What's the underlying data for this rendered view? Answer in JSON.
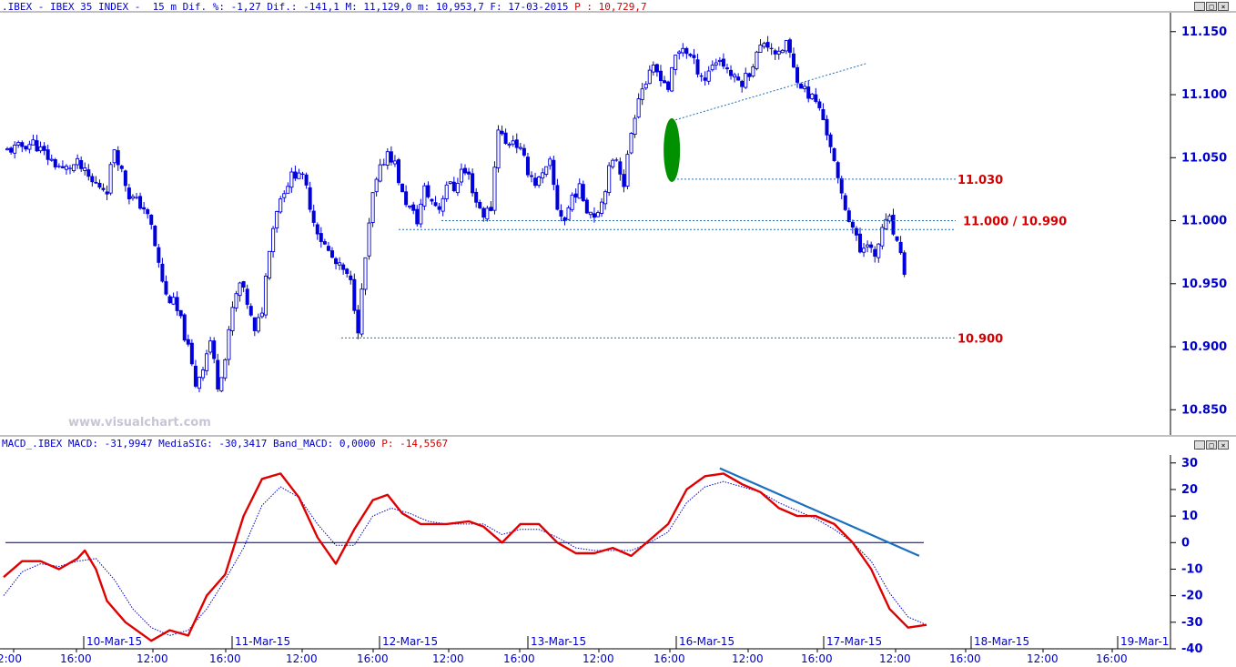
{
  "header": {
    "main_text": ".IBEX - IBEX 35 INDEX -  15 m Dif. %: -1,27 Dif.: -141,1 M: 11,129,0 m: 10,953,7 F: 17-03-2015",
    "main_price_label": "P : 10,729,7",
    "macd_text": "MACD_.IBEX MACD: -31,9947 MediaSIG: -30,3417 Band_MACD: 0,0000",
    "macd_price_label": "P: -14,5567"
  },
  "window_buttons": [
    "_",
    "□",
    "×"
  ],
  "watermark": "www.visualchart.com",
  "colors": {
    "candle": "#0000dd",
    "axis": "#0000cc",
    "level_label": "#d40000",
    "macd": "#e00000",
    "signal": "#0000cc",
    "trendline": "#1a6fc0",
    "highlight": "#009000"
  },
  "chart_data": [
    {
      "type": "candlestick",
      "title": "IBEX 35 INDEX 15 m",
      "y_ticks": [
        "11.150",
        "11.100",
        "11.050",
        "11.000",
        "10.950",
        "10.900",
        "10.850"
      ],
      "ylim": [
        10830,
        11165
      ],
      "x_date_labels": [
        "10-Mar-15",
        "11-Mar-15",
        "12-Mar-15",
        "13-Mar-15",
        "16-Mar-15",
        "17-Mar-15",
        "18-Mar-15",
        "19-Mar-1"
      ],
      "x_time_labels": [
        "2:00",
        "16:00",
        "12:00",
        "16:00",
        "12:00",
        "16:00",
        "12:00",
        "16:00",
        "12:00",
        "16:00",
        "12:00",
        "16:00",
        "12:00",
        "16:00",
        "12:00",
        "16:00"
      ],
      "close_path": [
        [
          0,
          11055
        ],
        [
          4,
          11058
        ],
        [
          8,
          11062
        ],
        [
          12,
          11050
        ],
        [
          16,
          11040
        ],
        [
          20,
          11045
        ],
        [
          24,
          11030
        ],
        [
          28,
          11025
        ],
        [
          30,
          11058
        ],
        [
          34,
          11020
        ],
        [
          38,
          11010
        ],
        [
          40,
          10995
        ],
        [
          42,
          10965
        ],
        [
          44,
          10940
        ],
        [
          46,
          10935
        ],
        [
          48,
          10920
        ],
        [
          50,
          10898
        ],
        [
          52,
          10870
        ],
        [
          54,
          10885
        ],
        [
          56,
          10905
        ],
        [
          58,
          10870
        ],
        [
          60,
          10890
        ],
        [
          62,
          10930
        ],
        [
          64,
          10950
        ],
        [
          66,
          10935
        ],
        [
          68,
          10910
        ],
        [
          70,
          10930
        ],
        [
          72,
          10980
        ],
        [
          74,
          11010
        ],
        [
          76,
          11025
        ],
        [
          78,
          11035
        ],
        [
          80,
          11040
        ],
        [
          82,
          11025
        ],
        [
          84,
          11000
        ],
        [
          86,
          10985
        ],
        [
          88,
          10975
        ],
        [
          90,
          10965
        ],
        [
          92,
          10960
        ],
        [
          94,
          10950
        ],
        [
          96,
          10915
        ],
        [
          98,
          10970
        ],
        [
          100,
          11020
        ],
        [
          102,
          11040
        ],
        [
          104,
          11055
        ],
        [
          106,
          11045
        ],
        [
          108,
          11020
        ],
        [
          110,
          11010
        ],
        [
          112,
          11000
        ],
        [
          114,
          11025
        ],
        [
          116,
          11015
        ],
        [
          118,
          11010
        ],
        [
          120,
          11030
        ],
        [
          122,
          11025
        ],
        [
          124,
          11040
        ],
        [
          126,
          11035
        ],
        [
          128,
          11015
        ],
        [
          130,
          11005
        ],
        [
          132,
          11010
        ],
        [
          134,
          11075
        ],
        [
          136,
          11060
        ],
        [
          138,
          11065
        ],
        [
          140,
          11055
        ],
        [
          142,
          11040
        ],
        [
          144,
          11030
        ],
        [
          146,
          11035
        ],
        [
          148,
          11045
        ],
        [
          150,
          11010
        ],
        [
          152,
          11000
        ],
        [
          154,
          11020
        ],
        [
          156,
          11025
        ],
        [
          158,
          11010
        ],
        [
          160,
          11005
        ],
        [
          162,
          11015
        ],
        [
          164,
          11040
        ],
        [
          166,
          11050
        ],
        [
          168,
          11030
        ],
        [
          170,
          11070
        ],
        [
          172,
          11100
        ],
        [
          174,
          11110
        ],
        [
          176,
          11120
        ],
        [
          178,
          11115
        ],
        [
          180,
          11105
        ],
        [
          182,
          11130
        ],
        [
          184,
          11138
        ],
        [
          186,
          11130
        ],
        [
          188,
          11120
        ],
        [
          190,
          11112
        ],
        [
          192,
          11125
        ],
        [
          194,
          11128
        ],
        [
          196,
          11120
        ],
        [
          198,
          11112
        ],
        [
          200,
          11110
        ],
        [
          202,
          11118
        ],
        [
          204,
          11132
        ],
        [
          206,
          11142
        ],
        [
          208,
          11138
        ],
        [
          210,
          11130
        ],
        [
          212,
          11142
        ],
        [
          214,
          11120
        ],
        [
          216,
          11108
        ],
        [
          218,
          11100
        ],
        [
          220,
          11095
        ],
        [
          222,
          11080
        ],
        [
          224,
          11060
        ],
        [
          226,
          11030
        ],
        [
          228,
          11010
        ],
        [
          230,
          10995
        ],
        [
          232,
          10975
        ],
        [
          234,
          10985
        ],
        [
          236,
          10968
        ],
        [
          238,
          10995
        ],
        [
          240,
          11000
        ],
        [
          242,
          10980
        ],
        [
          244,
          10960
        ]
      ],
      "levels": [
        {
          "label": "11.030",
          "value": 11033
        },
        {
          "label": "11.000 / 10.990",
          "value": 11000
        },
        {
          "label": "",
          "value": 10993
        },
        {
          "label": "10.900",
          "value": 10907
        }
      ]
    },
    {
      "type": "line",
      "title": "MACD",
      "y_ticks": [
        "30",
        "20",
        "10",
        "0",
        "-10",
        "-20",
        "-30",
        "-40"
      ],
      "ylim": [
        -40,
        33
      ],
      "series": [
        {
          "name": "MACD",
          "values": [
            [
              0,
              -13
            ],
            [
              5,
              -7
            ],
            [
              10,
              -7
            ],
            [
              15,
              -10
            ],
            [
              20,
              -6
            ],
            [
              22,
              -3
            ],
            [
              25,
              -10
            ],
            [
              28,
              -22
            ],
            [
              33,
              -30
            ],
            [
              40,
              -37
            ],
            [
              45,
              -33
            ],
            [
              50,
              -35
            ],
            [
              55,
              -20
            ],
            [
              60,
              -12
            ],
            [
              65,
              10
            ],
            [
              70,
              24
            ],
            [
              75,
              26
            ],
            [
              80,
              17
            ],
            [
              85,
              2
            ],
            [
              90,
              -8
            ],
            [
              95,
              5
            ],
            [
              100,
              16
            ],
            [
              104,
              18
            ],
            [
              108,
              11
            ],
            [
              113,
              7
            ],
            [
              120,
              7
            ],
            [
              126,
              8
            ],
            [
              130,
              6
            ],
            [
              135,
              0
            ],
            [
              140,
              7
            ],
            [
              145,
              7
            ],
            [
              150,
              0
            ],
            [
              155,
              -4
            ],
            [
              160,
              -4
            ],
            [
              165,
              -2
            ],
            [
              170,
              -5
            ],
            [
              175,
              1
            ],
            [
              180,
              7
            ],
            [
              185,
              20
            ],
            [
              190,
              25
            ],
            [
              195,
              26
            ],
            [
              200,
              22
            ],
            [
              205,
              19
            ],
            [
              210,
              13
            ],
            [
              215,
              10
            ],
            [
              220,
              10
            ],
            [
              225,
              7
            ],
            [
              230,
              0
            ],
            [
              235,
              -10
            ],
            [
              240,
              -25
            ],
            [
              245,
              -32
            ],
            [
              250,
              -31
            ]
          ]
        },
        {
          "name": "MediaSIG",
          "values": [
            [
              0,
              -20
            ],
            [
              5,
              -11
            ],
            [
              10,
              -8
            ],
            [
              15,
              -9
            ],
            [
              20,
              -7
            ],
            [
              25,
              -6
            ],
            [
              30,
              -14
            ],
            [
              35,
              -25
            ],
            [
              40,
              -32
            ],
            [
              45,
              -35
            ],
            [
              50,
              -33
            ],
            [
              55,
              -25
            ],
            [
              60,
              -14
            ],
            [
              65,
              -2
            ],
            [
              70,
              14
            ],
            [
              75,
              21
            ],
            [
              80,
              17
            ],
            [
              85,
              7
            ],
            [
              90,
              -1
            ],
            [
              95,
              -1
            ],
            [
              100,
              10
            ],
            [
              105,
              13
            ],
            [
              110,
              11
            ],
            [
              115,
              8
            ],
            [
              120,
              7
            ],
            [
              125,
              7
            ],
            [
              130,
              7
            ],
            [
              135,
              3
            ],
            [
              140,
              5
            ],
            [
              145,
              5
            ],
            [
              150,
              2
            ],
            [
              155,
              -2
            ],
            [
              160,
              -3
            ],
            [
              165,
              -3
            ],
            [
              170,
              -3
            ],
            [
              175,
              0
            ],
            [
              180,
              4
            ],
            [
              185,
              15
            ],
            [
              190,
              21
            ],
            [
              195,
              23
            ],
            [
              200,
              21
            ],
            [
              205,
              19
            ],
            [
              210,
              15
            ],
            [
              215,
              12
            ],
            [
              220,
              9
            ],
            [
              225,
              5
            ],
            [
              230,
              0
            ],
            [
              235,
              -7
            ],
            [
              240,
              -19
            ],
            [
              245,
              -28
            ],
            [
              250,
              -31
            ]
          ]
        }
      ],
      "zero_line": 0
    }
  ]
}
